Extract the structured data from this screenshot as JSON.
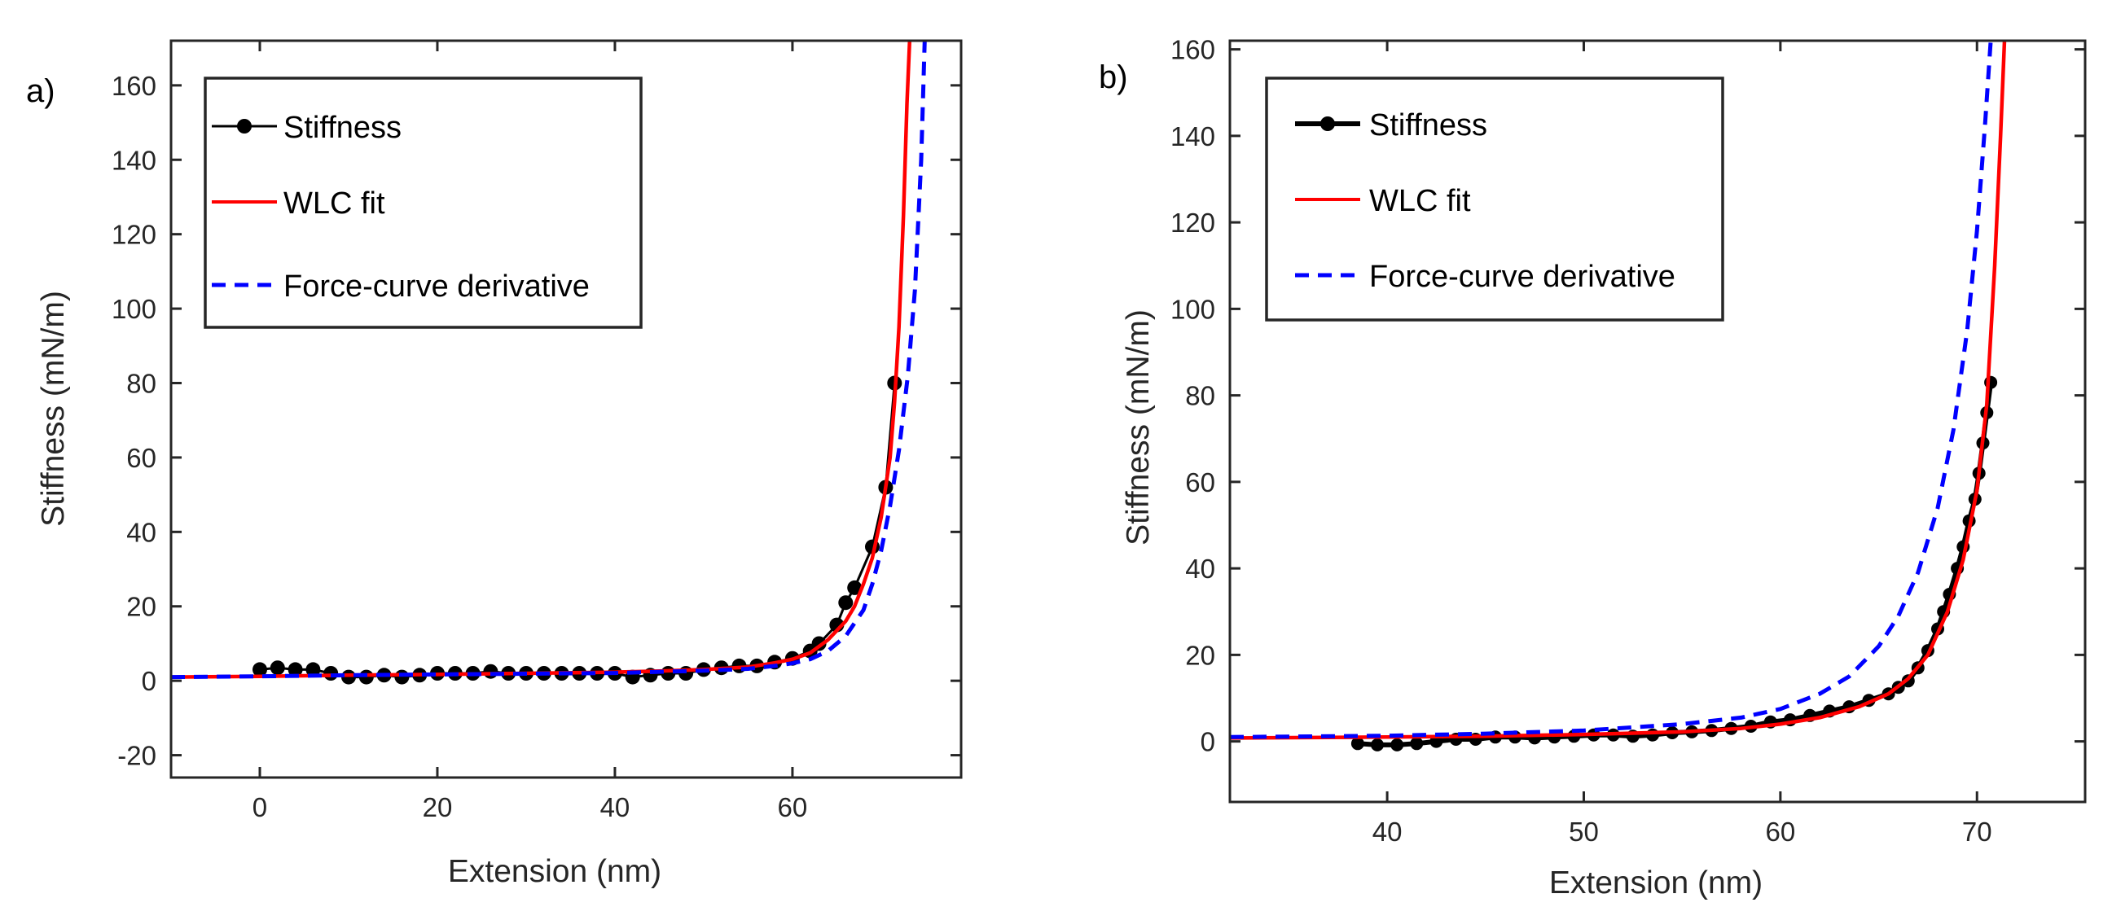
{
  "chart_data": [
    {
      "type": "line",
      "panel_label": "a)",
      "xlabel": "Extension (nm)",
      "ylabel": "Stiffness (mN/m)",
      "xlim": [
        -10,
        79
      ],
      "ylim": [
        -26,
        172
      ],
      "xticks": [
        0,
        20,
        40,
        60
      ],
      "yticks": [
        -20,
        0,
        20,
        40,
        60,
        80,
        100,
        120,
        140,
        160
      ],
      "legend_position": "top-left",
      "series": [
        {
          "name": "Stiffness",
          "style": "black line with filled circle markers",
          "color": "#000000",
          "points": [
            [
              0,
              3
            ],
            [
              2,
              3.5
            ],
            [
              4,
              3
            ],
            [
              6,
              3
            ],
            [
              8,
              2
            ],
            [
              10,
              1
            ],
            [
              12,
              1
            ],
            [
              14,
              1.5
            ],
            [
              16,
              1
            ],
            [
              18,
              1.5
            ],
            [
              20,
              2
            ],
            [
              22,
              2
            ],
            [
              24,
              2
            ],
            [
              26,
              2.5
            ],
            [
              28,
              2
            ],
            [
              30,
              2
            ],
            [
              32,
              2
            ],
            [
              34,
              2
            ],
            [
              36,
              2
            ],
            [
              38,
              2
            ],
            [
              40,
              2
            ],
            [
              42,
              1
            ],
            [
              44,
              1.5
            ],
            [
              46,
              2
            ],
            [
              48,
              2
            ],
            [
              50,
              3
            ],
            [
              52,
              3.5
            ],
            [
              54,
              4
            ],
            [
              56,
              4
            ],
            [
              58,
              5
            ],
            [
              60,
              6
            ],
            [
              62,
              8
            ],
            [
              63,
              10
            ],
            [
              65,
              15
            ],
            [
              66,
              21
            ],
            [
              67,
              25
            ],
            [
              69,
              36
            ],
            [
              70.5,
              52
            ],
            [
              71.5,
              80
            ]
          ]
        },
        {
          "name": "WLC fit",
          "style": "solid red line",
          "color": "#ff0000",
          "points": [
            [
              -10,
              1
            ],
            [
              0,
              1.2
            ],
            [
              10,
              1.5
            ],
            [
              20,
              1.7
            ],
            [
              30,
              2
            ],
            [
              40,
              2.3
            ],
            [
              45,
              2.6
            ],
            [
              50,
              3
            ],
            [
              55,
              3.7
            ],
            [
              58,
              4.8
            ],
            [
              60,
              5.8
            ],
            [
              62,
              7.5
            ],
            [
              64,
              11
            ],
            [
              66,
              16
            ],
            [
              67,
              20
            ],
            [
              68,
              26
            ],
            [
              69,
              33
            ],
            [
              70,
              44
            ],
            [
              71,
              60
            ],
            [
              71.5,
              75
            ],
            [
              72,
              95
            ],
            [
              72.5,
              125
            ],
            [
              72.9,
              155
            ],
            [
              73.2,
              172
            ]
          ]
        },
        {
          "name": "Force-curve derivative",
          "style": "dashed blue line",
          "color": "#0000ff",
          "points": [
            [
              -10,
              1
            ],
            [
              0,
              1.2
            ],
            [
              10,
              1.5
            ],
            [
              20,
              1.7
            ],
            [
              30,
              1.9
            ],
            [
              40,
              2.1
            ],
            [
              50,
              2.7
            ],
            [
              55,
              3.2
            ],
            [
              58,
              4
            ],
            [
              60,
              4.7
            ],
            [
              62,
              5.8
            ],
            [
              64,
              8
            ],
            [
              66,
              12
            ],
            [
              68,
              19
            ],
            [
              69,
              26
            ],
            [
              70,
              35
            ],
            [
              71,
              47
            ],
            [
              72,
              62
            ],
            [
              73,
              82
            ],
            [
              73.8,
              105
            ],
            [
              74.5,
              140
            ],
            [
              74.9,
              172
            ]
          ]
        }
      ]
    },
    {
      "type": "line",
      "panel_label": "b)",
      "xlabel": "Extension (nm)",
      "ylabel": "Stiffness (mN/m)",
      "xlim": [
        32,
        75.5
      ],
      "ylim": [
        -14,
        162
      ],
      "xticks": [
        40,
        50,
        60,
        70
      ],
      "yticks": [
        0,
        20,
        40,
        60,
        80,
        100,
        120,
        140,
        160
      ],
      "legend_position": "top-left",
      "series": [
        {
          "name": "Stiffness",
          "style": "thick black line with filled circle markers",
          "color": "#000000",
          "points": [
            [
              38.5,
              -0.5
            ],
            [
              39.5,
              -0.8
            ],
            [
              40.5,
              -0.8
            ],
            [
              41.5,
              -0.5
            ],
            [
              42.5,
              0
            ],
            [
              43.5,
              0.5
            ],
            [
              44.5,
              0.5
            ],
            [
              45.5,
              1
            ],
            [
              46.5,
              1
            ],
            [
              47.5,
              0.8
            ],
            [
              48.5,
              1
            ],
            [
              49.5,
              1.2
            ],
            [
              50.5,
              1.5
            ],
            [
              51.5,
              1.5
            ],
            [
              52.5,
              1.2
            ],
            [
              53.5,
              1.5
            ],
            [
              54.5,
              2
            ],
            [
              55.5,
              2.2
            ],
            [
              56.5,
              2.5
            ],
            [
              57.5,
              3
            ],
            [
              58.5,
              3.5
            ],
            [
              59.5,
              4.5
            ],
            [
              60.5,
              5
            ],
            [
              61.5,
              6
            ],
            [
              62.5,
              7
            ],
            [
              63.5,
              8
            ],
            [
              64.5,
              9.5
            ],
            [
              65.5,
              11
            ],
            [
              66,
              12.5
            ],
            [
              66.5,
              14
            ],
            [
              67,
              17
            ],
            [
              67.5,
              21
            ],
            [
              68,
              26
            ],
            [
              68.3,
              30
            ],
            [
              68.6,
              34
            ],
            [
              69,
              40
            ],
            [
              69.3,
              45
            ],
            [
              69.6,
              51
            ],
            [
              69.9,
              56
            ],
            [
              70.1,
              62
            ],
            [
              70.3,
              69
            ],
            [
              70.5,
              76
            ],
            [
              70.7,
              83
            ]
          ]
        },
        {
          "name": "WLC fit",
          "style": "solid red line",
          "color": "#ff0000",
          "points": [
            [
              32,
              0.8
            ],
            [
              40,
              1
            ],
            [
              45,
              1.2
            ],
            [
              50,
              1.6
            ],
            [
              55,
              2.2
            ],
            [
              58,
              3
            ],
            [
              60,
              4
            ],
            [
              62,
              5.5
            ],
            [
              64,
              8
            ],
            [
              65.5,
              11
            ],
            [
              66.5,
              14.5
            ],
            [
              67.5,
              20
            ],
            [
              68.5,
              30
            ],
            [
              69.3,
              42
            ],
            [
              70,
              58
            ],
            [
              70.5,
              78
            ],
            [
              70.9,
              110
            ],
            [
              71.2,
              140
            ],
            [
              71.4,
              162
            ]
          ]
        },
        {
          "name": "Force-curve derivative",
          "style": "dashed blue line",
          "color": "#0000ff",
          "points": [
            [
              32,
              1
            ],
            [
              40,
              1.3
            ],
            [
              45,
              1.8
            ],
            [
              50,
              2.5
            ],
            [
              55,
              4
            ],
            [
              58,
              5.5
            ],
            [
              60,
              7.5
            ],
            [
              62,
              11
            ],
            [
              63.5,
              15
            ],
            [
              65,
              22
            ],
            [
              66,
              29
            ],
            [
              67,
              39
            ],
            [
              68,
              54
            ],
            [
              68.8,
              72
            ],
            [
              69.5,
              95
            ],
            [
              70,
              118
            ],
            [
              70.4,
              142
            ],
            [
              70.7,
              162
            ]
          ]
        }
      ]
    }
  ]
}
